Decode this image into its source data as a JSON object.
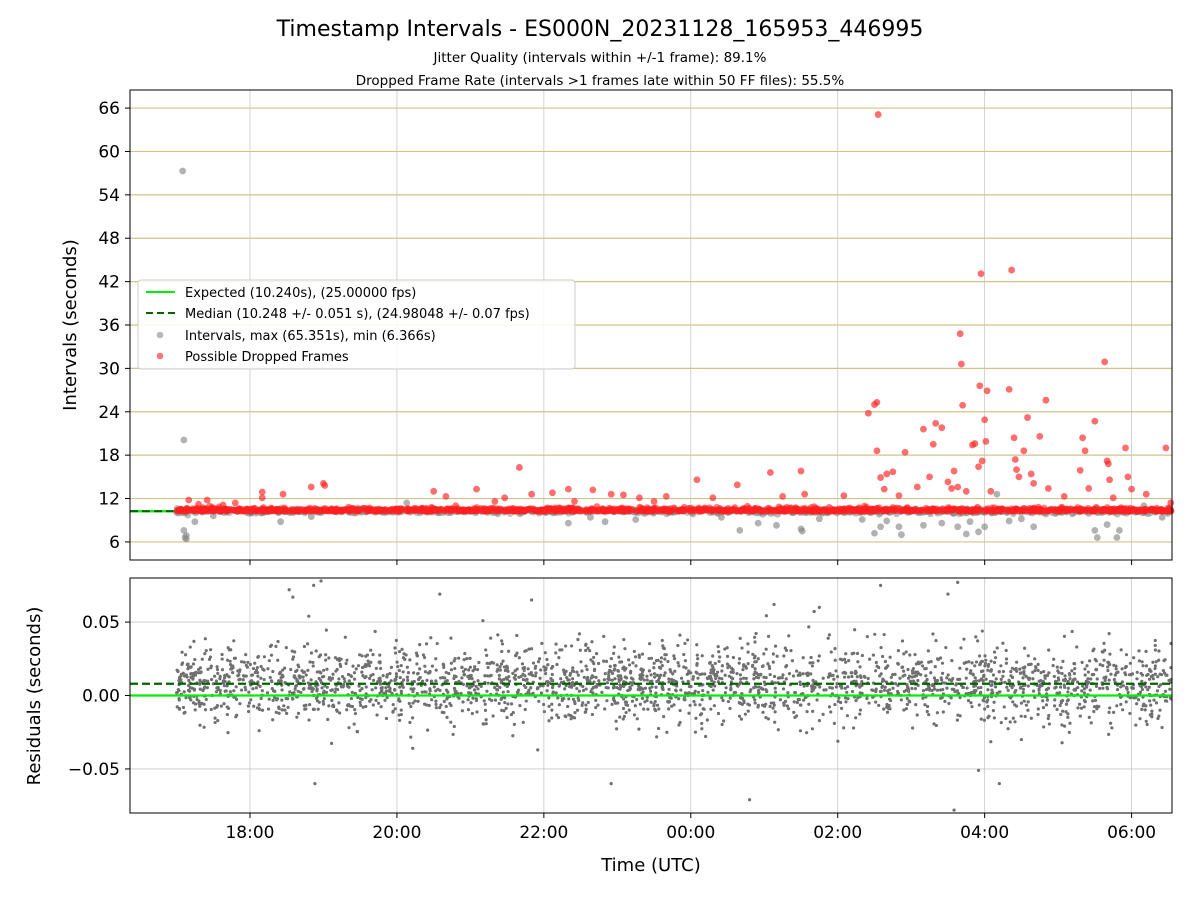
{
  "chart_data": [
    {
      "type": "scatter",
      "title": "Timestamp Intervals - ES000N_20231128_165953_446995",
      "subtitle_lines": [
        "Jitter Quality (intervals within +/-1 frame): 89.1%",
        "Dropped Frame Rate (intervals >1 frames late within 50 FF files): 55.5%"
      ],
      "xlabel": "",
      "ylabel": "Intervals (seconds)",
      "xlim": [
        "2023-11-28T16:22",
        "2023-11-29T06:33"
      ],
      "ylim": [
        3.5,
        68.5
      ],
      "yticks": [
        6,
        12,
        18,
        24,
        30,
        36,
        42,
        48,
        54,
        60,
        66
      ],
      "ytick_labels": [
        "6",
        "12",
        "18",
        "24",
        "30",
        "36",
        "42",
        "48",
        "54",
        "60",
        "66"
      ],
      "grid": true,
      "horizontal_gridline_color": "#d4c28a",
      "legend_position": "center-left",
      "series": [
        {
          "name": "Expected (10.240s), (25.00000 fps)",
          "kind": "hline",
          "y": 10.24,
          "color": "#00ee00",
          "style": "solid"
        },
        {
          "name": "Median (10.248 +/- 0.051 s), (24.98048 +/- 0.07 fps)",
          "kind": "hline",
          "y": 10.248,
          "color": "#006400",
          "style": "dashed"
        },
        {
          "name": "Intervals, max (65.351s), min (6.366s)",
          "kind": "scatter",
          "color": "#888888",
          "points": [
            [
              "2023-11-28T17:00",
              10.1
            ],
            [
              "2023-11-28T17:05",
              57.3
            ],
            [
              "2023-11-28T17:06",
              20.1
            ],
            [
              "2023-11-28T17:06",
              7.6
            ],
            [
              "2023-11-28T17:07",
              6.6
            ],
            [
              "2023-11-28T17:08",
              6.4
            ],
            [
              "2023-11-28T17:08",
              6.9
            ],
            [
              "2023-11-28T17:15",
              8.8
            ],
            [
              "2023-11-28T17:30",
              9.6
            ],
            [
              "2023-11-28T18:25",
              8.8
            ],
            [
              "2023-11-28T18:50",
              9.5
            ],
            [
              "2023-11-28T20:08",
              11.4
            ],
            [
              "2023-11-28T22:20",
              8.6
            ],
            [
              "2023-11-28T22:38",
              9.4
            ],
            [
              "2023-11-28T22:50",
              8.8
            ],
            [
              "2023-11-28T23:15",
              9.1
            ],
            [
              "2023-11-29T00:25",
              9.4
            ],
            [
              "2023-11-29T00:40",
              7.6
            ],
            [
              "2023-11-29T00:55",
              8.6
            ],
            [
              "2023-11-29T01:10",
              8.3
            ],
            [
              "2023-11-29T01:30",
              7.8
            ],
            [
              "2023-11-29T01:31",
              7.5
            ],
            [
              "2023-11-29T01:45",
              9.2
            ],
            [
              "2023-11-29T02:20",
              9.1
            ],
            [
              "2023-11-29T02:30",
              7.2
            ],
            [
              "2023-11-29T02:35",
              8.1
            ],
            [
              "2023-11-29T02:40",
              8.9
            ],
            [
              "2023-11-29T02:50",
              8.1
            ],
            [
              "2023-11-29T02:52",
              7.0
            ],
            [
              "2023-11-29T03:10",
              8.3
            ],
            [
              "2023-11-29T03:25",
              8.6
            ],
            [
              "2023-11-29T03:38",
              8.1
            ],
            [
              "2023-11-29T03:45",
              7.1
            ],
            [
              "2023-11-29T03:48",
              8.8
            ],
            [
              "2023-11-29T03:55",
              7.4
            ],
            [
              "2023-11-29T04:00",
              8.1
            ],
            [
              "2023-11-29T04:10",
              12.6
            ],
            [
              "2023-11-29T04:20",
              8.9
            ],
            [
              "2023-11-29T04:30",
              9.2
            ],
            [
              "2023-11-29T04:40",
              8.1
            ],
            [
              "2023-11-29T05:30",
              7.6
            ],
            [
              "2023-11-29T05:32",
              6.6
            ],
            [
              "2023-11-29T05:40",
              8.4
            ],
            [
              "2023-11-29T05:48",
              6.6
            ],
            [
              "2023-11-29T05:50",
              7.6
            ],
            [
              "2023-11-29T06:10",
              11.0
            ],
            [
              "2023-11-29T06:25",
              9.4
            ]
          ]
        },
        {
          "name": "Possible Dropped Frames",
          "kind": "scatter",
          "color": "#ff2020",
          "points": [
            [
              "2023-11-28T17:10",
              11.8
            ],
            [
              "2023-11-28T17:18",
              11.2
            ],
            [
              "2023-11-28T17:25",
              11.8
            ],
            [
              "2023-11-28T17:38",
              11.1
            ],
            [
              "2023-11-28T17:48",
              11.4
            ],
            [
              "2023-11-28T18:10",
              12.9
            ],
            [
              "2023-11-28T18:10",
              12.1
            ],
            [
              "2023-11-28T18:27",
              12.6
            ],
            [
              "2023-11-28T18:50",
              13.6
            ],
            [
              "2023-11-28T19:00",
              14.1
            ],
            [
              "2023-11-28T19:01",
              13.8
            ],
            [
              "2023-11-28T20:30",
              13.0
            ],
            [
              "2023-11-28T20:40",
              12.3
            ],
            [
              "2023-11-28T20:48",
              11.0
            ],
            [
              "2023-11-28T21:05",
              13.3
            ],
            [
              "2023-11-28T21:20",
              11.6
            ],
            [
              "2023-11-28T21:28",
              12.1
            ],
            [
              "2023-11-28T21:40",
              16.3
            ],
            [
              "2023-11-28T21:50",
              12.6
            ],
            [
              "2023-11-28T22:07",
              12.8
            ],
            [
              "2023-11-28T22:20",
              13.3
            ],
            [
              "2023-11-28T22:25",
              11.6
            ],
            [
              "2023-11-28T22:40",
              13.2
            ],
            [
              "2023-11-28T22:55",
              12.6
            ],
            [
              "2023-11-28T23:05",
              12.5
            ],
            [
              "2023-11-28T23:18",
              12.1
            ],
            [
              "2023-11-28T23:30",
              11.6
            ],
            [
              "2023-11-28T23:40",
              12.3
            ],
            [
              "2023-11-29T00:05",
              14.6
            ],
            [
              "2023-11-29T00:18",
              12.1
            ],
            [
              "2023-11-29T00:38",
              13.9
            ],
            [
              "2023-11-29T01:05",
              15.6
            ],
            [
              "2023-11-29T01:15",
              12.3
            ],
            [
              "2023-11-29T01:30",
              15.8
            ],
            [
              "2023-11-29T01:33",
              12.6
            ],
            [
              "2023-11-29T02:05",
              12.4
            ],
            [
              "2023-11-29T02:25",
              23.8
            ],
            [
              "2023-11-29T02:30",
              25.0
            ],
            [
              "2023-11-29T02:32",
              25.3
            ],
            [
              "2023-11-29T02:32",
              18.6
            ],
            [
              "2023-11-29T02:33",
              65.1
            ],
            [
              "2023-11-29T02:35",
              14.9
            ],
            [
              "2023-11-29T02:38",
              13.3
            ],
            [
              "2023-11-29T02:40",
              15.4
            ],
            [
              "2023-11-29T02:45",
              15.7
            ],
            [
              "2023-11-29T02:50",
              12.4
            ],
            [
              "2023-11-29T02:55",
              18.4
            ],
            [
              "2023-11-29T03:05",
              13.6
            ],
            [
              "2023-11-29T03:10",
              21.6
            ],
            [
              "2023-11-29T03:15",
              15.0
            ],
            [
              "2023-11-29T03:18",
              19.5
            ],
            [
              "2023-11-29T03:20",
              22.4
            ],
            [
              "2023-11-29T03:25",
              21.8
            ],
            [
              "2023-11-29T03:30",
              14.3
            ],
            [
              "2023-11-29T03:33",
              13.4
            ],
            [
              "2023-11-29T03:35",
              15.8
            ],
            [
              "2023-11-29T03:38",
              13.6
            ],
            [
              "2023-11-29T03:40",
              34.8
            ],
            [
              "2023-11-29T03:41",
              30.6
            ],
            [
              "2023-11-29T03:42",
              24.9
            ],
            [
              "2023-11-29T03:45",
              13.0
            ],
            [
              "2023-11-29T03:50",
              19.4
            ],
            [
              "2023-11-29T03:52",
              19.6
            ],
            [
              "2023-11-29T03:55",
              16.4
            ],
            [
              "2023-11-29T03:56",
              27.6
            ],
            [
              "2023-11-29T03:57",
              43.1
            ],
            [
              "2023-11-29T03:58",
              17.2
            ],
            [
              "2023-11-29T04:00",
              22.9
            ],
            [
              "2023-11-29T04:01",
              19.9
            ],
            [
              "2023-11-29T04:02",
              26.9
            ],
            [
              "2023-11-29T04:05",
              13.0
            ],
            [
              "2023-11-29T04:20",
              27.1
            ],
            [
              "2023-11-29T04:22",
              43.6
            ],
            [
              "2023-11-29T04:24",
              20.4
            ],
            [
              "2023-11-29T04:25",
              17.4
            ],
            [
              "2023-11-29T04:26",
              16.0
            ],
            [
              "2023-11-29T04:28",
              15.0
            ],
            [
              "2023-11-29T04:32",
              18.6
            ],
            [
              "2023-11-29T04:35",
              23.2
            ],
            [
              "2023-11-29T04:38",
              15.4
            ],
            [
              "2023-11-29T04:40",
              14.1
            ],
            [
              "2023-11-29T04:45",
              20.6
            ],
            [
              "2023-11-29T04:50",
              25.6
            ],
            [
              "2023-11-29T04:52",
              13.4
            ],
            [
              "2023-11-29T05:05",
              12.3
            ],
            [
              "2023-11-29T05:18",
              15.9
            ],
            [
              "2023-11-29T05:20",
              20.4
            ],
            [
              "2023-11-29T05:22",
              18.6
            ],
            [
              "2023-11-29T05:25",
              13.4
            ],
            [
              "2023-11-29T05:30",
              22.7
            ],
            [
              "2023-11-29T05:38",
              30.9
            ],
            [
              "2023-11-29T05:40",
              17.2
            ],
            [
              "2023-11-29T05:41",
              16.8
            ],
            [
              "2023-11-29T05:42",
              14.6
            ],
            [
              "2023-11-29T05:45",
              12.1
            ],
            [
              "2023-11-29T05:55",
              19.0
            ],
            [
              "2023-11-29T05:57",
              15.0
            ],
            [
              "2023-11-29T06:00",
              13.3
            ],
            [
              "2023-11-29T06:12",
              12.6
            ],
            [
              "2023-11-29T06:28",
              19.0
            ],
            [
              "2023-11-29T06:32",
              11.4
            ]
          ]
        }
      ]
    },
    {
      "type": "scatter",
      "xlabel": "Time (UTC)",
      "ylabel": "Residuals (seconds)",
      "xlim": [
        "2023-11-28T16:22",
        "2023-11-29T06:33"
      ],
      "ylim": [
        -0.08,
        0.08
      ],
      "xticks": [
        "2023-11-28T18:00",
        "2023-11-28T20:00",
        "2023-11-28T22:00",
        "2023-11-29T00:00",
        "2023-11-29T02:00",
        "2023-11-29T04:00",
        "2023-11-29T06:00"
      ],
      "xtick_labels": [
        "18:00",
        "20:00",
        "22:00",
        "00:00",
        "02:00",
        "04:00",
        "06:00"
      ],
      "yticks": [
        -0.05,
        0.0,
        0.05
      ],
      "ytick_labels": [
        "−0.05",
        "0.00",
        "0.05"
      ],
      "grid": true,
      "series": [
        {
          "kind": "hline",
          "y": 0.0,
          "color": "#00ee00",
          "style": "solid"
        },
        {
          "kind": "hline",
          "y": 0.008,
          "color": "#006400",
          "style": "dashed"
        },
        {
          "kind": "scatter-dense",
          "color": "#707070",
          "x_range": [
            "2023-11-28T17:00",
            "2023-11-29T06:33"
          ],
          "center": 0.008,
          "spread_sd": 0.013,
          "approx_count": 2600,
          "outliers": [
            [
              "2023-11-28T18:32",
              0.072
            ],
            [
              "2023-11-28T18:35",
              0.067
            ],
            [
              "2023-11-28T18:52",
              0.075
            ],
            [
              "2023-11-28T18:58",
              0.078
            ],
            [
              "2023-11-28T18:53",
              -0.06
            ],
            [
              "2023-11-28T18:48",
              0.054
            ],
            [
              "2023-11-28T20:35",
              0.069
            ],
            [
              "2023-11-28T21:50",
              0.065
            ],
            [
              "2023-11-28T22:55",
              -0.06
            ],
            [
              "2023-11-29T00:48",
              -0.071
            ],
            [
              "2023-11-29T01:08",
              0.062
            ],
            [
              "2023-11-29T01:45",
              0.06
            ],
            [
              "2023-11-29T02:35",
              0.075
            ],
            [
              "2023-11-29T03:30",
              0.069
            ],
            [
              "2023-11-29T03:38",
              0.077
            ],
            [
              "2023-11-29T03:35",
              -0.078
            ],
            [
              "2023-11-29T03:55",
              -0.051
            ],
            [
              "2023-11-29T04:12",
              -0.06
            ],
            [
              "2023-11-28T21:55",
              -0.037
            ],
            [
              "2023-11-29T04:30",
              -0.03
            ]
          ]
        }
      ]
    }
  ]
}
